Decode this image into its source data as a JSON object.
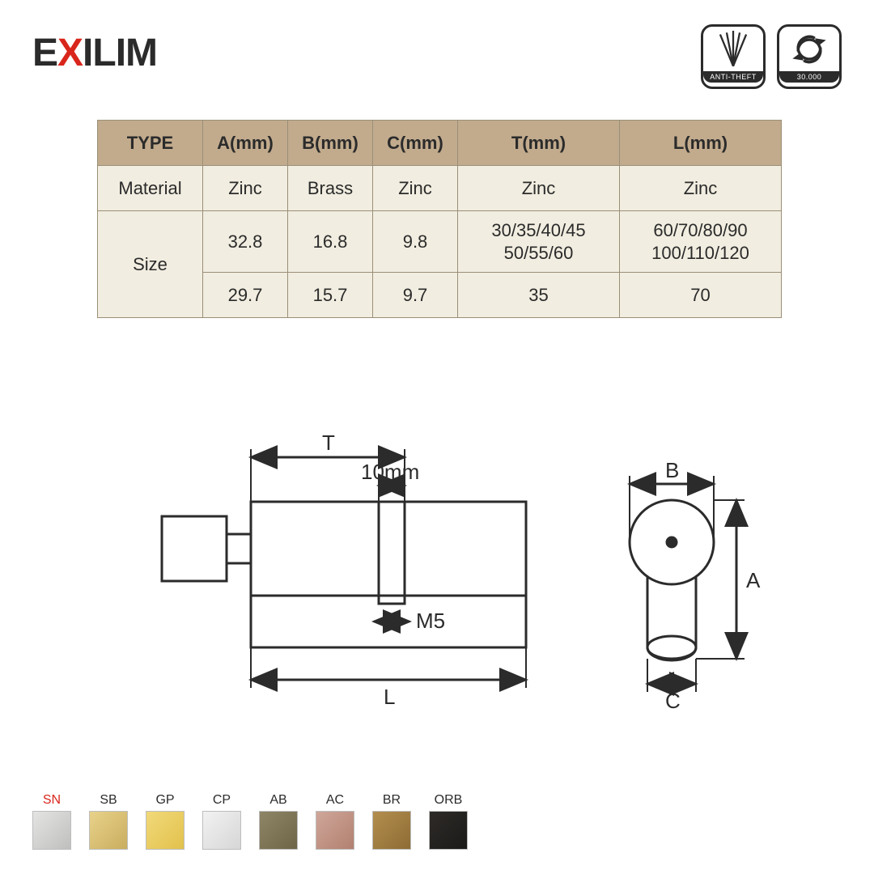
{
  "brand": {
    "e": "E",
    "x": "X",
    "rest": "ILIM"
  },
  "badges": {
    "anti": "ANTI-THEFT",
    "cycles": "30.000"
  },
  "table": {
    "headers": [
      "TYPE",
      "A(mm)",
      "B(mm)",
      "C(mm)",
      "T(mm)",
      "L(mm)"
    ],
    "material_label": "Material",
    "material": [
      "Zinc",
      "Brass",
      "Zinc",
      "Zinc",
      "Zinc"
    ],
    "size_label": "Size",
    "size1": [
      "32.8",
      "16.8",
      "9.8",
      "30/35/40/45\n50/55/60",
      "60/70/80/90\n100/110/120"
    ],
    "size2": [
      "29.7",
      "15.7",
      "9.7",
      "35",
      "70"
    ]
  },
  "diagram": {
    "T": "T",
    "ten": "10mm",
    "M5": "M5",
    "L": "L",
    "B": "B",
    "A": "A",
    "C": "C",
    "stroke": "#2b2b2b",
    "stroke_w": 3
  },
  "swatches": [
    {
      "code": "SN",
      "grad": [
        "#e4e4e2",
        "#bfbfbd"
      ],
      "red": true
    },
    {
      "code": "SB",
      "grad": [
        "#e8d28a",
        "#c9ad5f"
      ]
    },
    {
      "code": "GP",
      "grad": [
        "#f1d97a",
        "#e2c14c"
      ]
    },
    {
      "code": "CP",
      "grad": [
        "#f2f2f2",
        "#d6d6d6"
      ]
    },
    {
      "code": "AB",
      "grad": [
        "#8f8567",
        "#6e6547"
      ]
    },
    {
      "code": "AC",
      "grad": [
        "#cfa79a",
        "#b2806f"
      ]
    },
    {
      "code": "BR",
      "grad": [
        "#b38e4e",
        "#8d6c34"
      ]
    },
    {
      "code": "ORB",
      "grad": [
        "#2e2b28",
        "#1b1a18"
      ]
    }
  ]
}
